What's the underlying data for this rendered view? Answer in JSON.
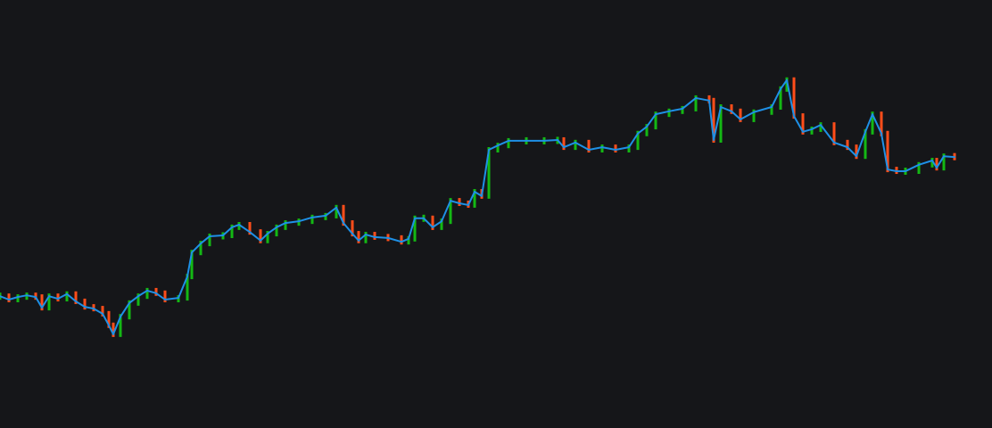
{
  "chart_data": {
    "type": "line",
    "title": "",
    "xlabel": "",
    "ylabel": "",
    "grid": false,
    "xlim": [
      0,
      1112
    ],
    "ylim": [
      0,
      100
    ],
    "colors": {
      "background": "#151619",
      "line": "#1e90e6",
      "up": "#14b814",
      "down": "#ff4d1a"
    },
    "x": [
      0,
      10,
      20,
      30,
      40,
      47,
      55,
      65,
      75,
      85,
      95,
      105,
      115,
      122,
      127,
      135,
      145,
      155,
      165,
      175,
      185,
      200,
      210,
      215,
      225,
      235,
      250,
      260,
      268,
      280,
      292,
      300,
      310,
      320,
      335,
      350,
      365,
      377,
      385,
      395,
      402,
      410,
      420,
      435,
      450,
      458,
      465,
      475,
      485,
      495,
      505,
      515,
      525,
      532,
      540,
      548,
      558,
      570,
      590,
      610,
      625,
      632,
      645,
      660,
      675,
      690,
      705,
      715,
      725,
      735,
      750,
      765,
      780,
      795,
      800,
      808,
      820,
      830,
      845,
      865,
      875,
      882,
      890,
      900,
      910,
      920,
      935,
      950,
      960,
      970,
      978,
      988,
      995,
      1005,
      1015,
      1030,
      1045,
      1050,
      1058,
      1070
    ],
    "values": [
      30.8,
      30.0,
      30.6,
      31.0,
      30.6,
      28.1,
      30.8,
      30.2,
      31.3,
      29.6,
      28.3,
      27.9,
      26.7,
      24.0,
      21.9,
      26.0,
      29.2,
      30.8,
      32.1,
      31.5,
      30.0,
      30.4,
      35.4,
      41.0,
      43.1,
      44.8,
      45.0,
      46.9,
      47.5,
      45.8,
      43.8,
      45.4,
      46.9,
      47.9,
      48.3,
      49.2,
      49.6,
      51.5,
      47.9,
      45.4,
      43.8,
      45.2,
      44.6,
      44.4,
      43.5,
      44.2,
      49.0,
      49.0,
      46.9,
      48.3,
      53.1,
      52.5,
      52.1,
      55.2,
      54.2,
      65.0,
      66.0,
      67.1,
      67.1,
      67.1,
      67.3,
      65.6,
      66.7,
      65.0,
      65.6,
      65.0,
      65.6,
      68.8,
      70.4,
      73.3,
      74.0,
      74.6,
      77.1,
      76.5,
      67.3,
      75.0,
      74.0,
      72.1,
      73.8,
      75.0,
      79.2,
      81.3,
      72.9,
      69.2,
      69.8,
      70.8,
      66.7,
      65.6,
      63.5,
      69.2,
      73.3,
      68.8,
      60.4,
      60.0,
      60.0,
      61.5,
      62.5,
      60.8,
      63.5,
      63.3
    ]
  }
}
